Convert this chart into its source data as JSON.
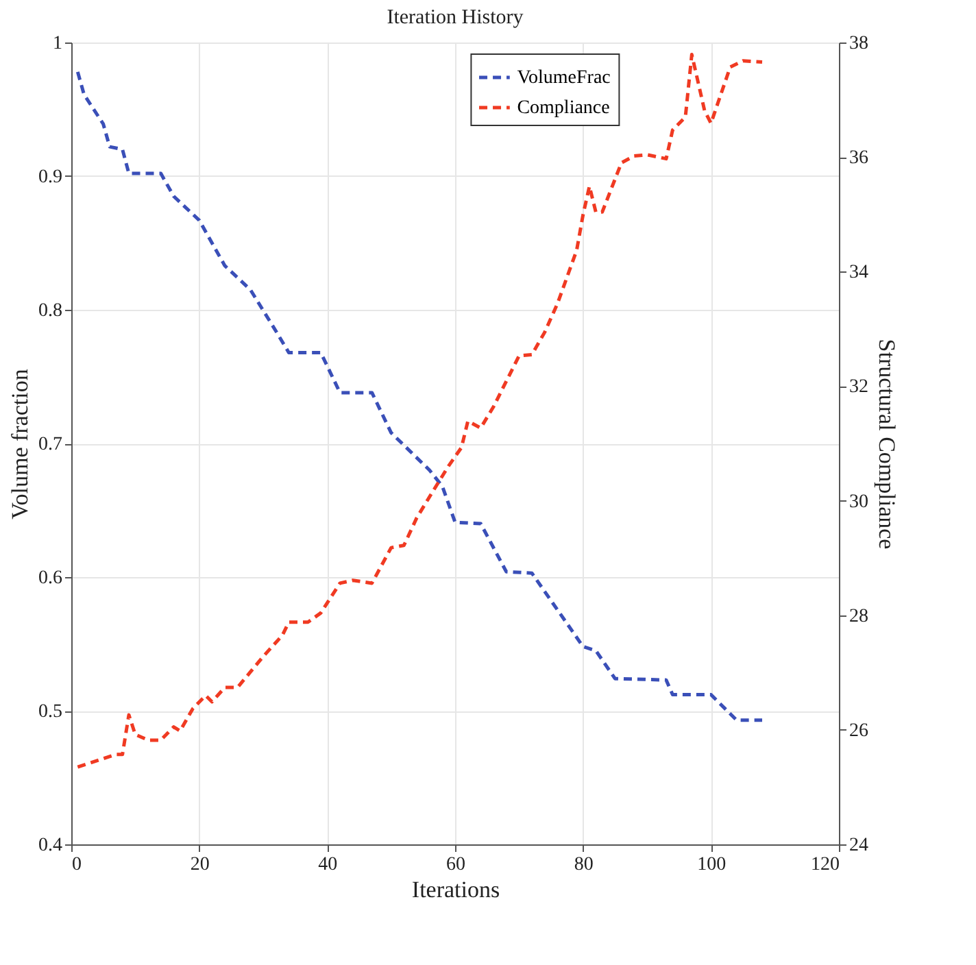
{
  "chart_data": {
    "type": "line",
    "title": "Iteration History",
    "xlabel": "Iterations",
    "ylabel": "Volume fraction",
    "y2label": "Structural Compliance",
    "xlim": [
      0,
      120
    ],
    "xticks": [
      0,
      20,
      40,
      60,
      80,
      100,
      120
    ],
    "ylim": [
      0.4,
      1
    ],
    "yticks": [
      0.4,
      0.5,
      0.6,
      0.7,
      0.8,
      0.9,
      1
    ],
    "y2lim": [
      24,
      38
    ],
    "y2ticks": [
      24,
      26,
      28,
      30,
      32,
      34,
      36,
      38
    ],
    "grid": true,
    "legend": "top right",
    "line_style": "dashed",
    "marker": "none",
    "series": [
      {
        "name": "VolumeFrac",
        "color": "#3a4fb8",
        "x": [
          1,
          2,
          5,
          6,
          8,
          9,
          14,
          16,
          20,
          24,
          28,
          32,
          34,
          39,
          42,
          47,
          50,
          56,
          58,
          60,
          64,
          68,
          72,
          80,
          82,
          85,
          93,
          94,
          100,
          104,
          108
        ],
        "values": [
          0.978,
          0.961,
          0.939,
          0.922,
          0.92,
          0.902,
          0.902,
          0.885,
          0.867,
          0.833,
          0.815,
          0.784,
          0.768,
          0.768,
          0.738,
          0.738,
          0.708,
          0.68,
          0.668,
          0.641,
          0.64,
          0.604,
          0.603,
          0.548,
          0.545,
          0.524,
          0.523,
          0.512,
          0.512,
          0.493,
          0.493
        ]
      },
      {
        "name": "Compliance",
        "color": "#f03a22",
        "axis": "y2",
        "x": [
          1,
          7,
          8,
          9,
          10,
          12,
          14,
          16,
          17,
          19,
          21,
          22,
          24,
          26,
          28,
          30,
          33,
          34,
          37,
          39,
          42,
          44,
          47,
          50,
          52,
          54,
          57,
          59,
          61,
          62,
          64,
          66,
          70,
          72,
          74,
          76,
          79,
          80,
          81,
          82,
          83,
          86,
          88,
          90,
          93,
          94,
          96,
          97,
          99,
          100,
          103,
          105,
          108
        ],
        "values": [
          25.35,
          25.57,
          25.57,
          26.26,
          25.92,
          25.82,
          25.82,
          26.05,
          25.98,
          26.37,
          26.6,
          26.49,
          26.74,
          26.74,
          27.01,
          27.28,
          27.65,
          27.88,
          27.88,
          28.04,
          28.56,
          28.61,
          28.56,
          29.18,
          29.22,
          29.7,
          30.25,
          30.61,
          30.93,
          31.39,
          31.27,
          31.64,
          32.53,
          32.55,
          32.94,
          33.44,
          34.37,
          34.99,
          35.49,
          35.04,
          35.04,
          35.9,
          36.02,
          36.04,
          35.97,
          36.47,
          36.7,
          37.79,
          36.81,
          36.59,
          37.57,
          37.68,
          37.66
        ]
      }
    ]
  }
}
